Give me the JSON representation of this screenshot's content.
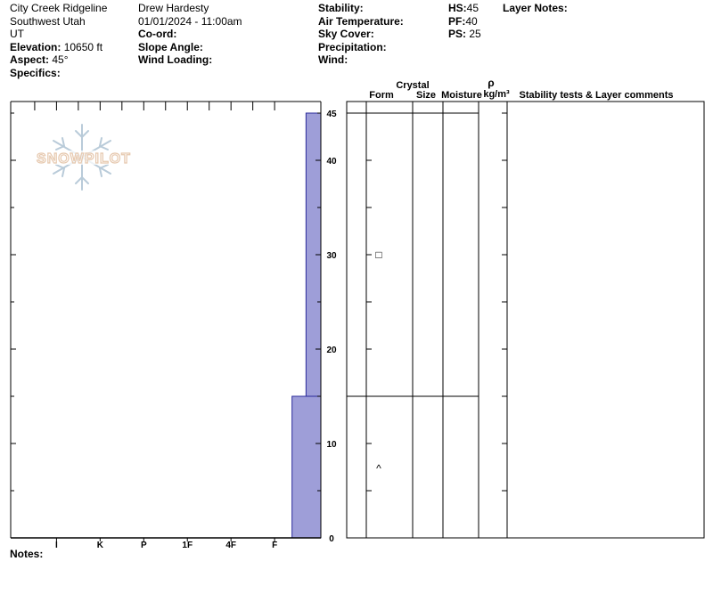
{
  "header": {
    "location": "City Creek Ridgeline",
    "range": "Southwest Utah",
    "state": "UT",
    "elevation_label": "Elevation:",
    "elevation_value": "10650 ft",
    "aspect_label": "Aspect:",
    "aspect_value": "45°",
    "specifics_label": "Specifics:",
    "observer": "Drew Hardesty",
    "datetime": "01/01/2024 - 11:00am",
    "coord_label": "Co-ord:",
    "slope_label": "Slope Angle:",
    "wind_loading_label": "Wind Loading:",
    "stability_label": "Stability:",
    "air_temp_label": "Air Temperature:",
    "sky_cover_label": "Sky Cover:",
    "precip_label": "Precipitation:",
    "wind_label": "Wind:",
    "hs_label": "HS:",
    "hs_value": "45",
    "pf_label": "PF:",
    "pf_value": "40",
    "ps_label": "PS:",
    "ps_value": "25",
    "layer_notes_label": "Layer Notes:"
  },
  "logo_text": "SNOWPILOT",
  "notes_label": "Notes:",
  "columns": {
    "crystal": "Crystal",
    "form": "Form",
    "size": "Size",
    "moisture": "Moisture",
    "rho": "ρ",
    "density_unit": "kg/m³",
    "comments": "Stability tests & Layer comments"
  },
  "chart_data": {
    "type": "bar",
    "title": "",
    "ylabel": "",
    "ylim": [
      0,
      46
    ],
    "hardness_categories": [
      "I",
      "K",
      "P",
      "1F",
      "4F",
      "F"
    ],
    "y_ticks_major": [
      0,
      10,
      20,
      30,
      40,
      45
    ],
    "layers": [
      {
        "bottom": 0,
        "top": 15,
        "hardness_index": 6.4,
        "form_symbol": "^"
      },
      {
        "bottom": 15,
        "top": 45,
        "hardness_index": 6.72,
        "form_symbol": "□"
      }
    ],
    "colors": {
      "fill": "#9e9ed8",
      "stroke": "#2a2a9a"
    }
  }
}
